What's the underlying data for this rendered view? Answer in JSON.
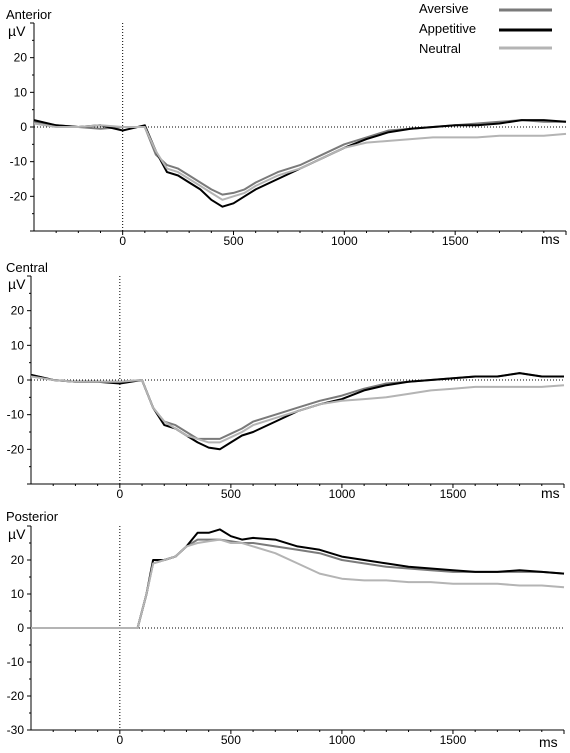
{
  "legend": {
    "placement": "top-right",
    "items": [
      {
        "label": "Aversive",
        "color": "#7a7a7a"
      },
      {
        "label": "Appetitive",
        "color": "#000000"
      },
      {
        "label": "Neutral",
        "color": "#b4b4b4"
      }
    ]
  },
  "chart_data": [
    {
      "type": "line",
      "title": "Anterior",
      "ylabel": "µV",
      "xlabel": "ms",
      "xlim": [
        -400,
        2000
      ],
      "ylim": [
        -30,
        30
      ],
      "xticks": [
        0,
        500,
        1000,
        1500
      ],
      "yticks": [
        -20,
        -10,
        0,
        10,
        20
      ],
      "grid": false,
      "series": [
        {
          "name": "Aversive",
          "color": "#7a7a7a",
          "width": 2,
          "x": [
            -400,
            -300,
            -200,
            -100,
            0,
            100,
            150,
            200,
            250,
            300,
            350,
            400,
            450,
            500,
            550,
            600,
            700,
            800,
            900,
            1000,
            1100,
            1200,
            1300,
            1400,
            1500,
            1600,
            1700,
            1800,
            1900,
            2000
          ],
          "y": [
            1.5,
            0.5,
            0,
            -0.5,
            0,
            0,
            -8,
            -11,
            -12,
            -14,
            -16,
            -18,
            -19.5,
            -19,
            -18,
            -16,
            -13,
            -11,
            -8,
            -5,
            -3,
            -1,
            -0.5,
            0,
            0.5,
            1,
            1.5,
            2,
            1.5,
            1.5
          ]
        },
        {
          "name": "Appetitive",
          "color": "#000000",
          "width": 2,
          "x": [
            -400,
            -300,
            -200,
            -100,
            0,
            100,
            150,
            200,
            250,
            300,
            350,
            400,
            450,
            500,
            550,
            600,
            700,
            800,
            900,
            1000,
            1100,
            1200,
            1300,
            1400,
            1500,
            1600,
            1700,
            1800,
            1900,
            2000
          ],
          "y": [
            2,
            0.5,
            0,
            0.5,
            -1,
            0.5,
            -7,
            -13,
            -14,
            -16,
            -18,
            -21,
            -23,
            -22,
            -20,
            -18,
            -15,
            -12,
            -9,
            -6,
            -3.5,
            -1.5,
            -0.5,
            0,
            0.5,
            0.5,
            1,
            2,
            2,
            1.5
          ]
        },
        {
          "name": "Neutral",
          "color": "#b4b4b4",
          "width": 2,
          "x": [
            -400,
            -300,
            -200,
            -100,
            0,
            100,
            150,
            200,
            250,
            300,
            350,
            400,
            450,
            500,
            550,
            600,
            700,
            800,
            900,
            1000,
            1100,
            1200,
            1300,
            1400,
            1500,
            1600,
            1700,
            1800,
            1900,
            2000
          ],
          "y": [
            1,
            0,
            0,
            0.5,
            0,
            0,
            -7,
            -12,
            -13,
            -15,
            -17,
            -19,
            -21,
            -20,
            -19,
            -17,
            -14,
            -12,
            -9,
            -6,
            -4.5,
            -4,
            -3.5,
            -3,
            -3,
            -3,
            -2.5,
            -2.5,
            -2.5,
            -2
          ]
        }
      ]
    },
    {
      "type": "line",
      "title": "Central",
      "ylabel": "µV",
      "xlabel": "ms",
      "xlim": [
        -400,
        2000
      ],
      "ylim": [
        -30,
        30
      ],
      "xticks": [
        0,
        500,
        1000,
        1500
      ],
      "yticks": [
        -20,
        -10,
        0,
        10,
        20
      ],
      "grid": false,
      "series": [
        {
          "name": "Aversive",
          "color": "#7a7a7a",
          "width": 2,
          "x": [
            -400,
            -300,
            -200,
            -100,
            0,
            100,
            150,
            200,
            250,
            300,
            350,
            400,
            450,
            500,
            550,
            600,
            700,
            800,
            900,
            1000,
            1100,
            1200,
            1300,
            1400,
            1500,
            1600,
            1700,
            1800,
            1900,
            2000
          ],
          "y": [
            1.5,
            0,
            -0.5,
            -0.5,
            -0.5,
            0,
            -8,
            -12,
            -13,
            -15,
            -17,
            -17,
            -17,
            -15.5,
            -14,
            -12,
            -10,
            -8,
            -6,
            -4.5,
            -2.5,
            -1,
            -0.5,
            0,
            0.5,
            1,
            1,
            2,
            1,
            1
          ]
        },
        {
          "name": "Appetitive",
          "color": "#000000",
          "width": 2,
          "x": [
            -400,
            -300,
            -200,
            -100,
            0,
            100,
            150,
            200,
            250,
            300,
            350,
            400,
            450,
            500,
            550,
            600,
            700,
            800,
            900,
            1000,
            1100,
            1200,
            1300,
            1400,
            1500,
            1600,
            1700,
            1800,
            1900,
            2000
          ],
          "y": [
            1.5,
            0,
            -0.5,
            -0.5,
            -1,
            0,
            -8,
            -13,
            -14,
            -16,
            -18,
            -19.5,
            -20,
            -18,
            -16,
            -15,
            -12,
            -9,
            -7,
            -5.5,
            -3,
            -1.5,
            -0.5,
            0,
            0.5,
            1,
            1,
            2,
            1,
            1
          ]
        },
        {
          "name": "Neutral",
          "color": "#b4b4b4",
          "width": 2,
          "x": [
            -400,
            -300,
            -200,
            -100,
            0,
            100,
            150,
            200,
            250,
            300,
            350,
            400,
            450,
            500,
            550,
            600,
            700,
            800,
            900,
            1000,
            1100,
            1200,
            1300,
            1400,
            1500,
            1600,
            1700,
            1800,
            1900,
            2000
          ],
          "y": [
            1,
            0,
            -0.5,
            -0.5,
            -0.5,
            0,
            -8,
            -12,
            -14,
            -16,
            -17,
            -18,
            -18,
            -16.5,
            -15,
            -13,
            -11,
            -9,
            -7,
            -6,
            -5.5,
            -5,
            -4,
            -3,
            -2.5,
            -2,
            -2,
            -2,
            -2,
            -1.5
          ]
        }
      ]
    },
    {
      "type": "line",
      "title": "Posterior",
      "ylabel": "µV",
      "xlabel": "ms",
      "xlim": [
        -400,
        2000
      ],
      "ylim": [
        -30,
        30
      ],
      "xticks": [
        0,
        500,
        1000,
        1500
      ],
      "yticks": [
        -30,
        -20,
        -10,
        0,
        10,
        20
      ],
      "grid": false,
      "series": [
        {
          "name": "Aversive",
          "color": "#7a7a7a",
          "width": 2,
          "x": [
            -400,
            -300,
            -200,
            -100,
            0,
            80,
            120,
            150,
            200,
            250,
            300,
            350,
            400,
            450,
            500,
            550,
            600,
            700,
            800,
            900,
            1000,
            1100,
            1200,
            1300,
            1400,
            1500,
            1600,
            1700,
            1800,
            1900,
            2000
          ],
          "y": [
            0,
            0,
            0,
            0,
            0,
            0,
            10,
            19,
            20,
            21,
            24,
            26,
            26,
            26,
            25.5,
            25,
            25,
            24,
            23,
            22,
            20,
            19,
            18,
            17.5,
            17,
            16.5,
            16.5,
            16.5,
            16.5,
            16.5,
            16
          ]
        },
        {
          "name": "Appetitive",
          "color": "#000000",
          "width": 2,
          "x": [
            -400,
            -300,
            -200,
            -100,
            0,
            80,
            120,
            150,
            200,
            250,
            300,
            350,
            400,
            450,
            500,
            550,
            600,
            700,
            800,
            900,
            1000,
            1100,
            1200,
            1300,
            1400,
            1500,
            1600,
            1700,
            1800,
            1900,
            2000
          ],
          "y": [
            0,
            0,
            0,
            0,
            0,
            0,
            10,
            20,
            20,
            21,
            24,
            28,
            28,
            29,
            27,
            26,
            26.5,
            26,
            24,
            23,
            21,
            20,
            19,
            18,
            17.5,
            17,
            16.5,
            16.5,
            17,
            16.5,
            16
          ]
        },
        {
          "name": "Neutral",
          "color": "#b4b4b4",
          "width": 2,
          "x": [
            -400,
            -300,
            -200,
            -100,
            0,
            80,
            120,
            150,
            200,
            250,
            300,
            350,
            400,
            450,
            500,
            550,
            600,
            700,
            800,
            900,
            1000,
            1100,
            1200,
            1300,
            1400,
            1500,
            1600,
            1700,
            1800,
            1900,
            2000
          ],
          "y": [
            0,
            0,
            0,
            0,
            0,
            0,
            10,
            19,
            20,
            21,
            24,
            25,
            25.5,
            26,
            25,
            25,
            24,
            22,
            19,
            16,
            14.5,
            14,
            14,
            13.5,
            13.5,
            13,
            13,
            13,
            12.5,
            12.5,
            12
          ]
        }
      ]
    }
  ]
}
